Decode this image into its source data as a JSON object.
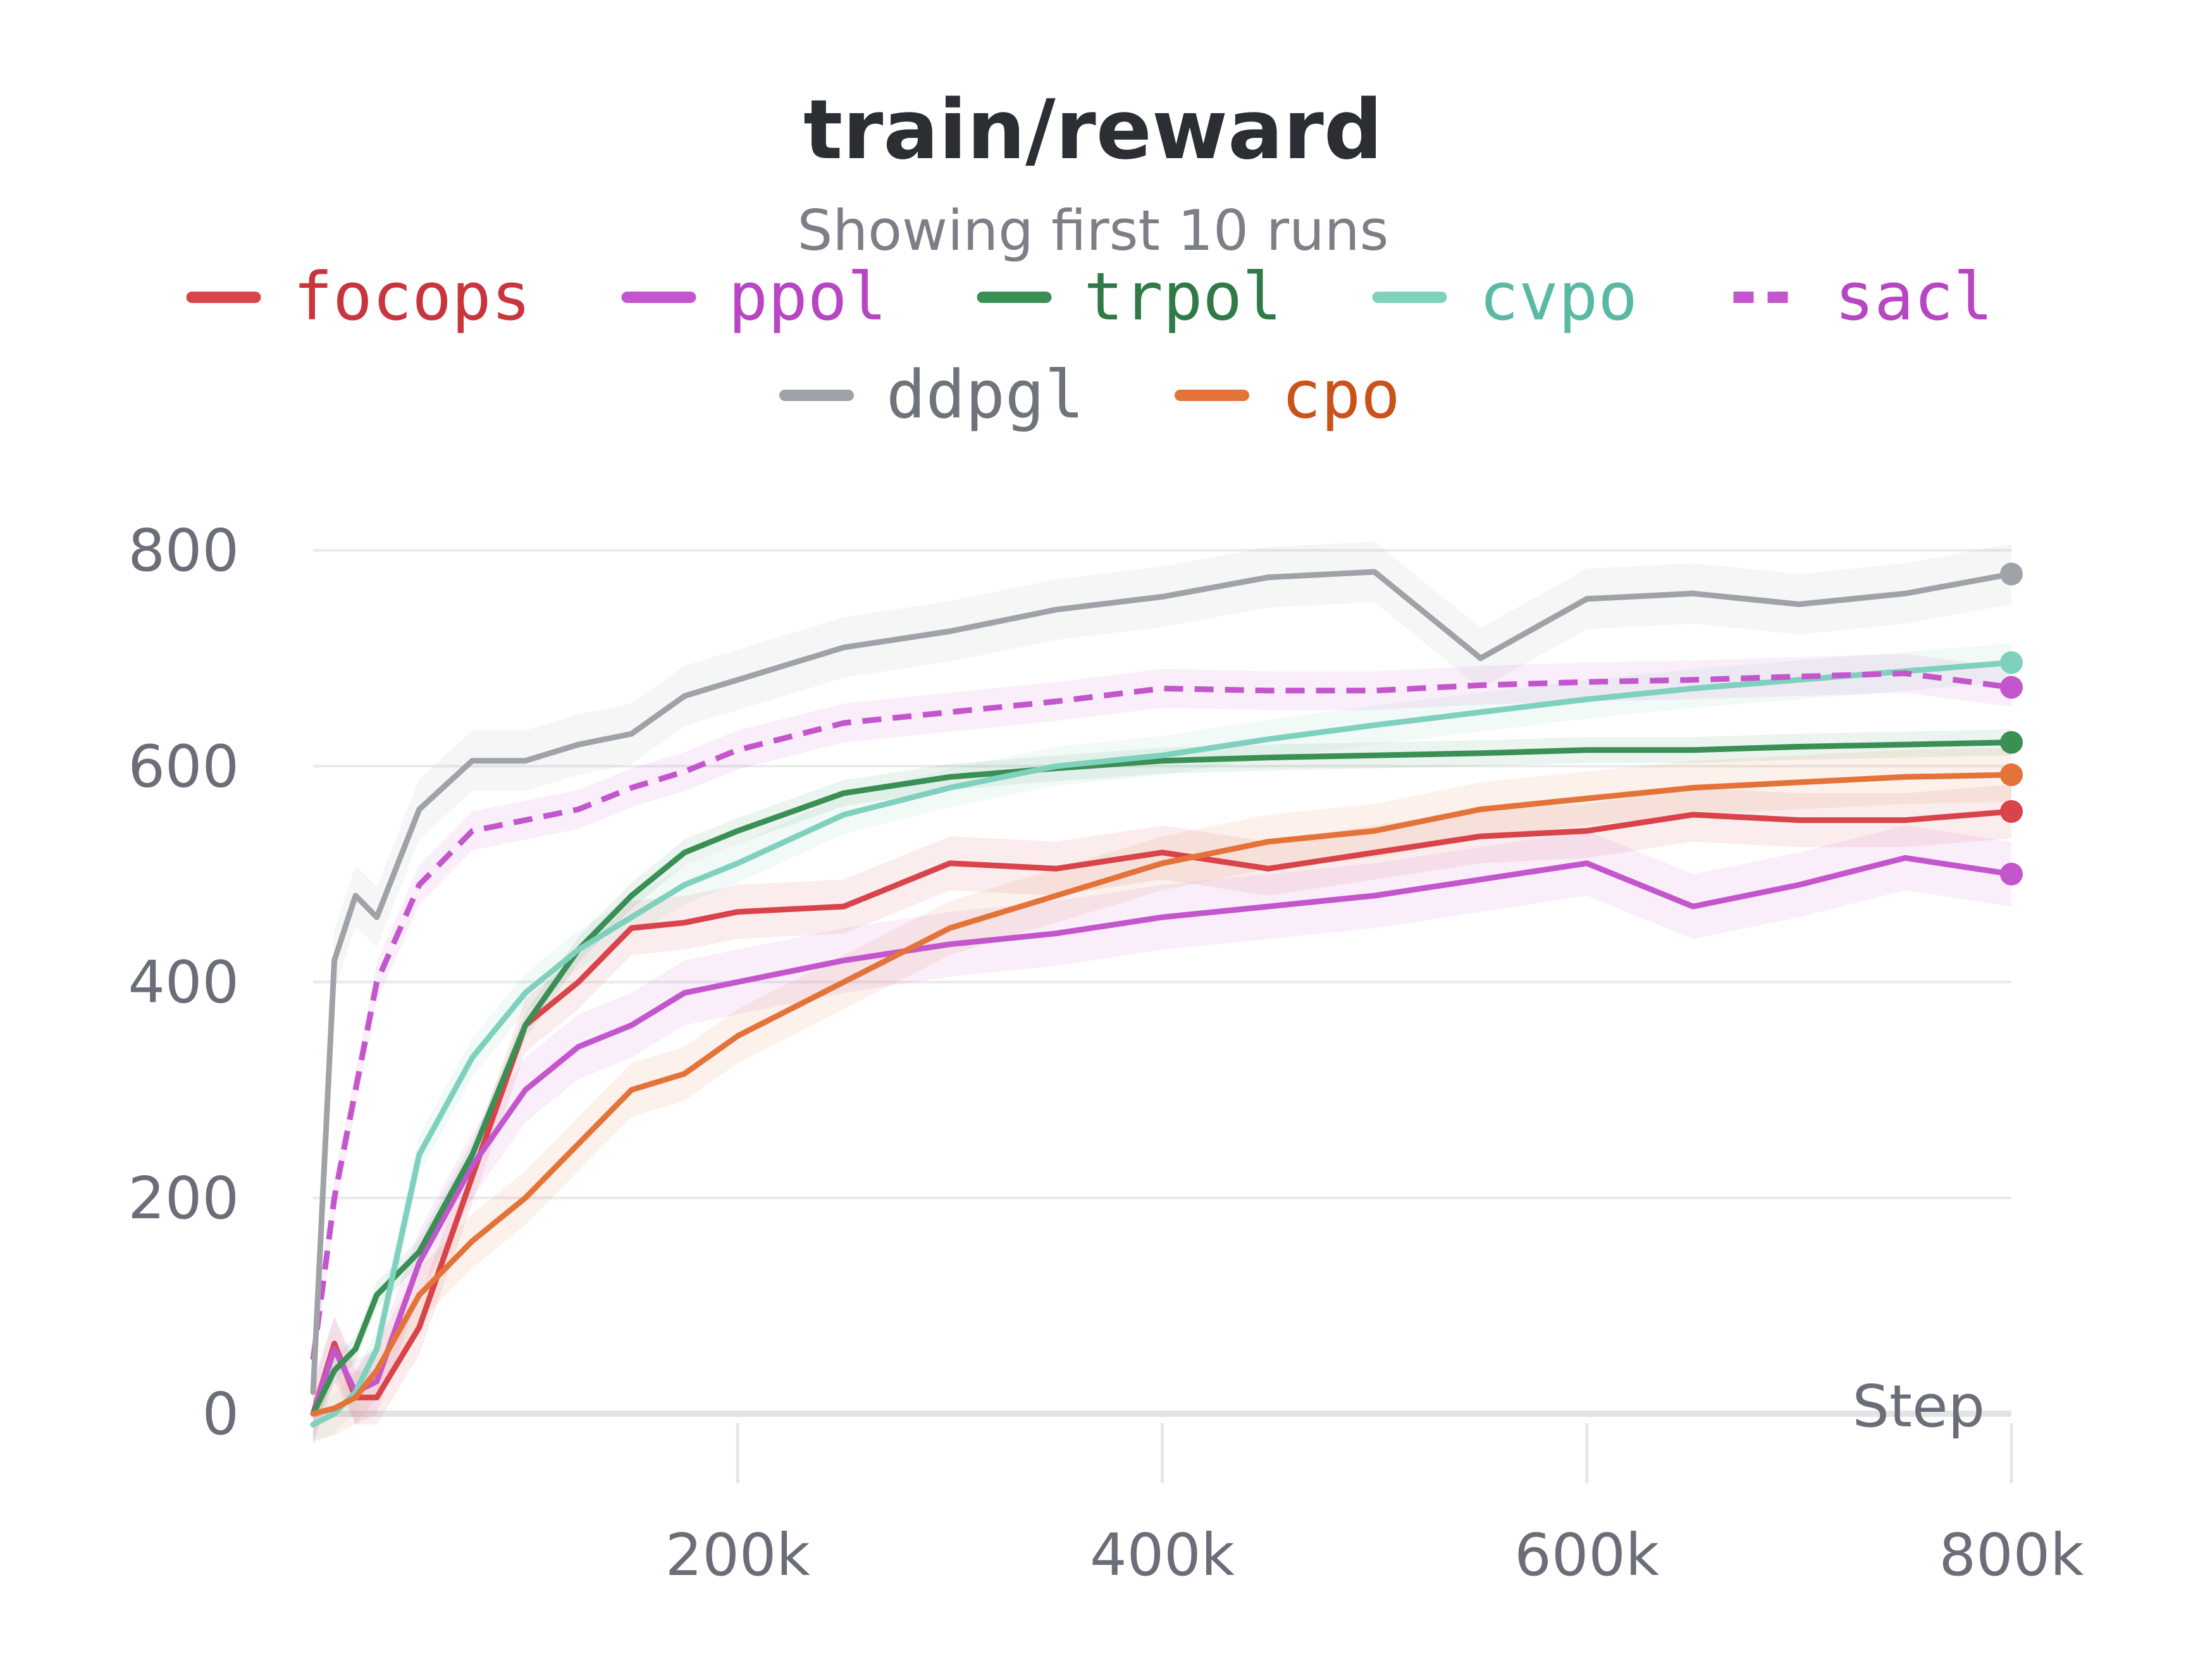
{
  "chart_data": {
    "type": "line",
    "title": "train/reward",
    "subtitle": "Showing first 10 runs",
    "xlabel": "Step",
    "ylabel": "",
    "xlim": [
      0,
      800000
    ],
    "ylim": [
      0,
      800
    ],
    "x_ticks": [
      {
        "value": 200000,
        "label": "200k"
      },
      {
        "value": 400000,
        "label": "400k"
      },
      {
        "value": 600000,
        "label": "600k"
      },
      {
        "value": 800000,
        "label": "800k"
      }
    ],
    "y_ticks": [
      {
        "value": 0,
        "label": "0"
      },
      {
        "value": 200,
        "label": "200"
      },
      {
        "value": 400,
        "label": "400"
      },
      {
        "value": 600,
        "label": "600"
      },
      {
        "value": 800,
        "label": "800"
      }
    ],
    "grid": true,
    "legend_position": "top",
    "x": [
      0,
      10000,
      20000,
      30000,
      50000,
      75000,
      100000,
      125000,
      150000,
      175000,
      200000,
      250000,
      300000,
      350000,
      400000,
      450000,
      500000,
      550000,
      600000,
      650000,
      700000,
      750000,
      800000
    ],
    "series": [
      {
        "name": "focops",
        "color": "#d9434a",
        "text_color": "#c9353c",
        "dashed": false,
        "band": 25,
        "values": [
          0,
          65,
          15,
          15,
          80,
          220,
          360,
          400,
          450,
          455,
          465,
          470,
          510,
          505,
          520,
          505,
          520,
          535,
          540,
          555,
          550,
          550,
          558
        ]
      },
      {
        "name": "ppol",
        "color": "#c356cc",
        "text_color": "#b845c3",
        "dashed": false,
        "band": 30,
        "values": [
          0,
          60,
          20,
          30,
          140,
          230,
          300,
          340,
          360,
          390,
          400,
          420,
          435,
          445,
          460,
          470,
          480,
          495,
          510,
          470,
          490,
          515,
          500
        ]
      },
      {
        "name": "trpol",
        "color": "#3a8f55",
        "text_color": "#2f7a47",
        "dashed": false,
        "band": 12,
        "values": [
          0,
          40,
          60,
          110,
          150,
          240,
          360,
          430,
          480,
          520,
          540,
          575,
          590,
          598,
          605,
          608,
          610,
          612,
          615,
          615,
          618,
          620,
          622
        ]
      },
      {
        "name": "cvpo",
        "color": "#7fd1bd",
        "text_color": "#5ab9a4",
        "dashed": false,
        "band": 18,
        "values": [
          -10,
          0,
          20,
          60,
          240,
          330,
          390,
          430,
          460,
          490,
          510,
          555,
          580,
          600,
          610,
          625,
          638,
          650,
          662,
          672,
          680,
          688,
          696
        ]
      },
      {
        "name": "sacl",
        "color": "#c356cc",
        "text_color": "#b845c3",
        "dashed": true,
        "band": 18,
        "values": [
          50,
          200,
          300,
          400,
          490,
          540,
          550,
          560,
          580,
          595,
          615,
          640,
          650,
          660,
          672,
          670,
          670,
          675,
          678,
          680,
          683,
          686,
          673
        ]
      },
      {
        "name": "ddpgl",
        "color": "#9fa3a7",
        "text_color": "#6f737a",
        "dashed": false,
        "band": 28,
        "values": [
          20,
          420,
          480,
          460,
          560,
          605,
          605,
          620,
          630,
          665,
          680,
          710,
          725,
          745,
          757,
          775,
          780,
          700,
          755,
          760,
          750,
          760,
          778
        ]
      },
      {
        "name": "cpo",
        "color": "#e4733a",
        "text_color": "#c9531b",
        "dashed": false,
        "band": 25,
        "values": [
          0,
          5,
          15,
          40,
          110,
          160,
          200,
          250,
          300,
          315,
          350,
          400,
          450,
          480,
          510,
          530,
          540,
          560,
          570,
          580,
          585,
          590,
          592
        ]
      }
    ]
  }
}
